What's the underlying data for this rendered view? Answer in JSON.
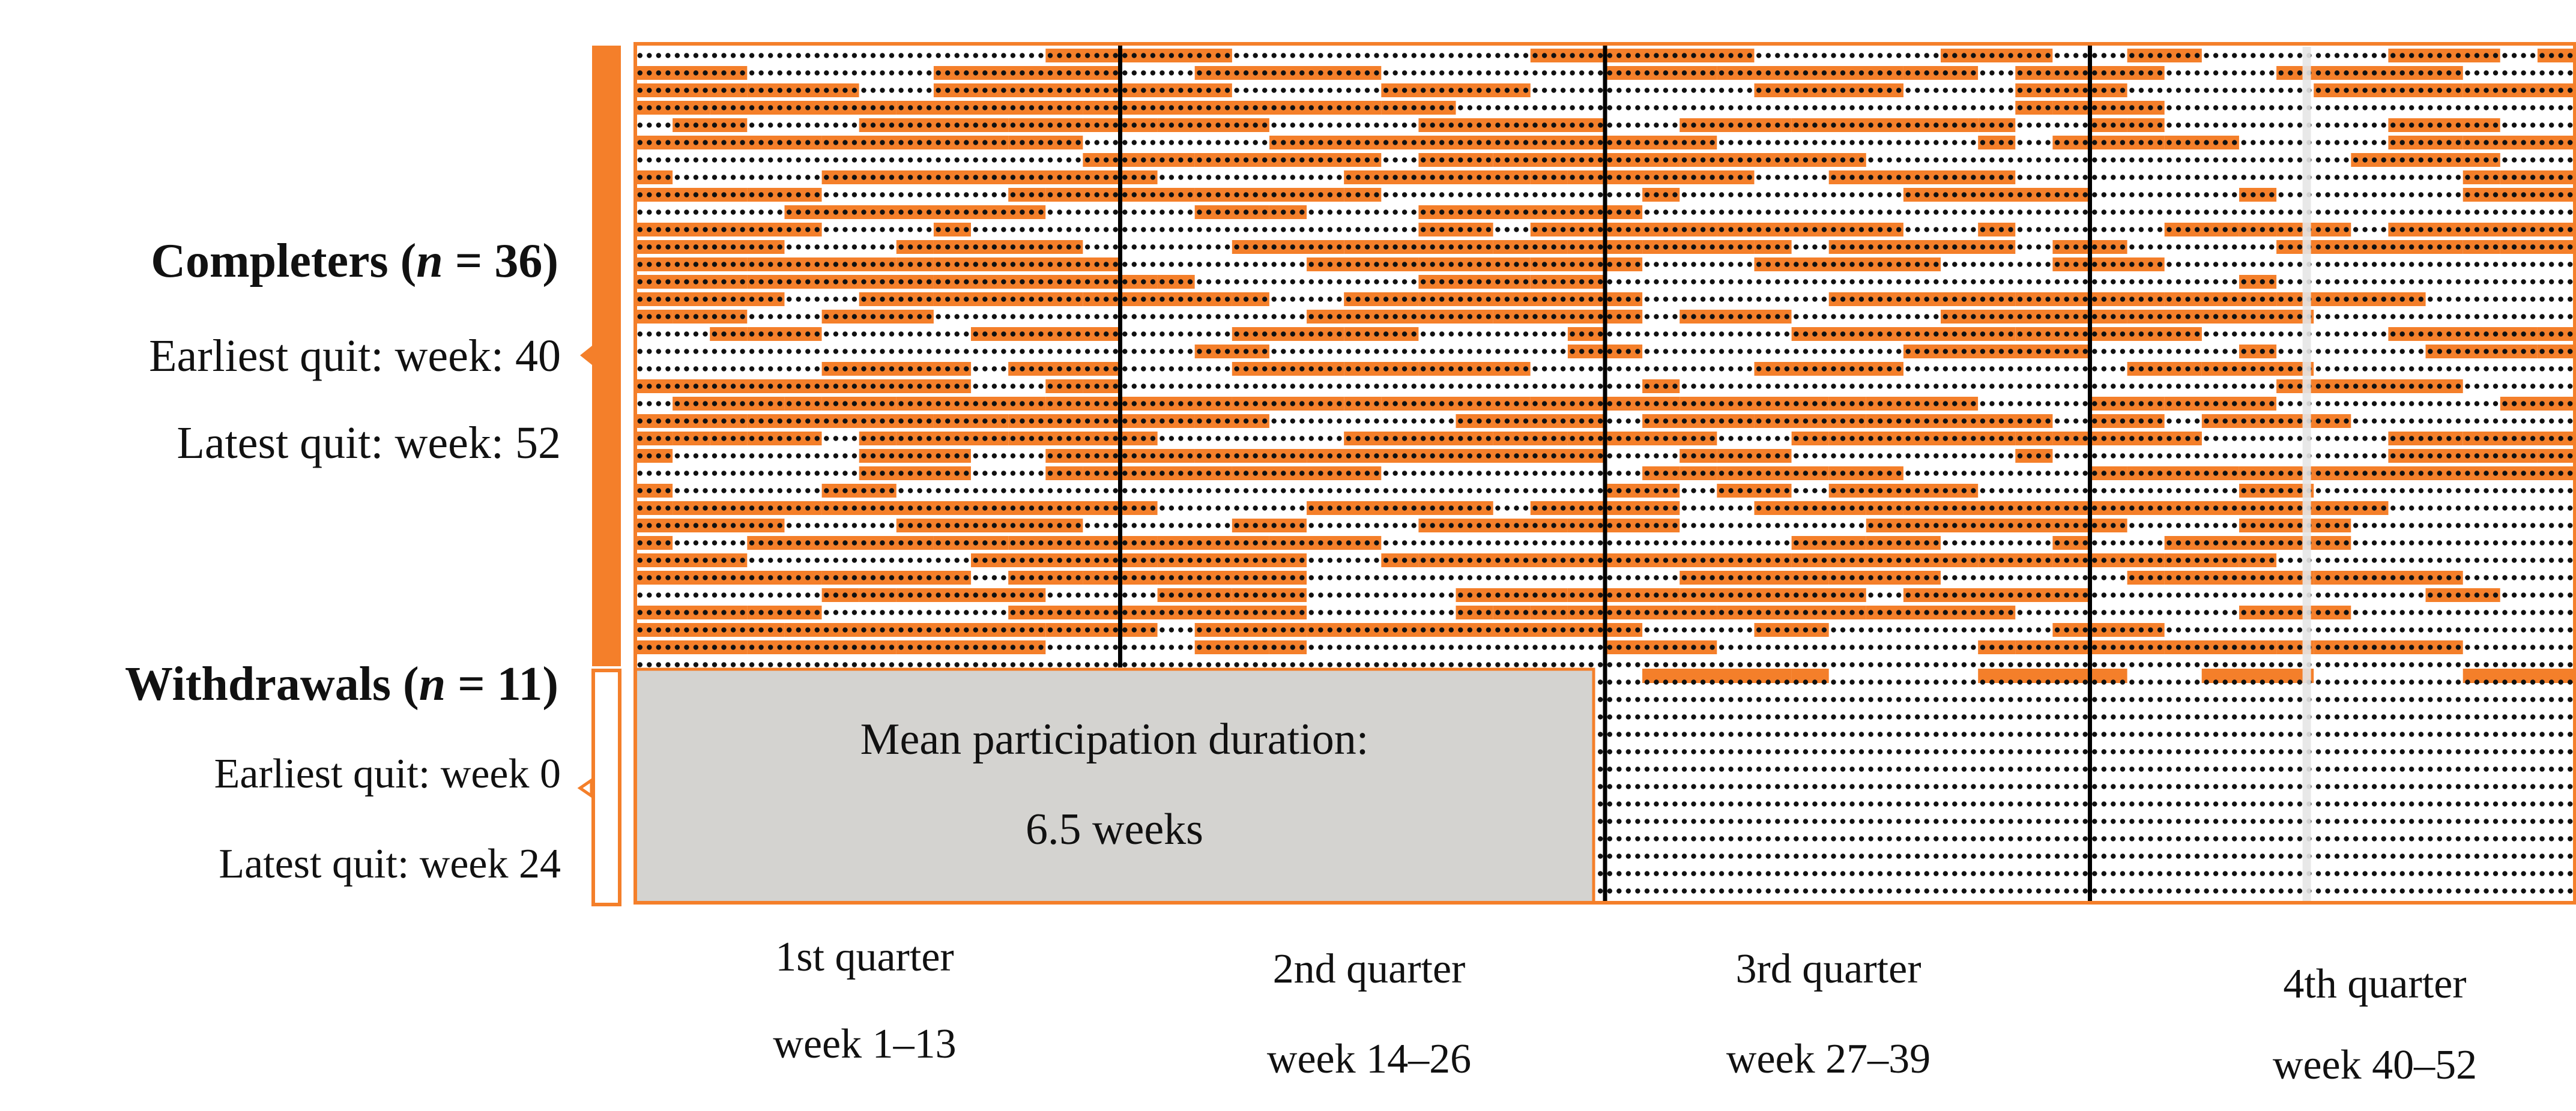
{
  "chart_data": {
    "type": "heatmap",
    "title": "",
    "weeks": 52,
    "x_range": [
      1,
      52
    ],
    "quarters": [
      {
        "name": "1st quarter",
        "weeks_label": "week 1–13",
        "start": 1,
        "end": 13
      },
      {
        "name": "2nd quarter",
        "weeks_label": "week 14–26",
        "start": 14,
        "end": 26
      },
      {
        "name": "3rd quarter",
        "weeks_label": "week 27–39",
        "start": 27,
        "end": 39
      },
      {
        "name": "4th quarter",
        "weeks_label": "week 40–52",
        "start": 40,
        "end": 52
      }
    ],
    "groups": [
      {
        "name": "Completers",
        "n_label": "n",
        "n_equals": "= 36)",
        "n": 36,
        "earliest_quit_label": "Earliest quit: week: 40",
        "latest_quit_label": "Latest quit: week: 52",
        "earliest_quit_week": 40,
        "latest_quit_week": 52
      },
      {
        "name": "Withdrawals",
        "n_label": "n",
        "n_equals": "= 11)",
        "n": 11,
        "earliest_quit_label": "Earliest quit: week 0",
        "latest_quit_label": "Latest quit: week 24",
        "earliest_quit_week": 0,
        "latest_quit_week": 24
      }
    ],
    "annotation": {
      "line1": "Mean participation duration:",
      "line2": "6.5 weeks",
      "mean_weeks": 6.5
    },
    "legend": "none"
  },
  "colors": {
    "accent": "#f47f2a",
    "dot": "#111111",
    "annotation_fill": "#d4d3d0",
    "background": "#ffffff",
    "gap": "#e6e6e6"
  }
}
